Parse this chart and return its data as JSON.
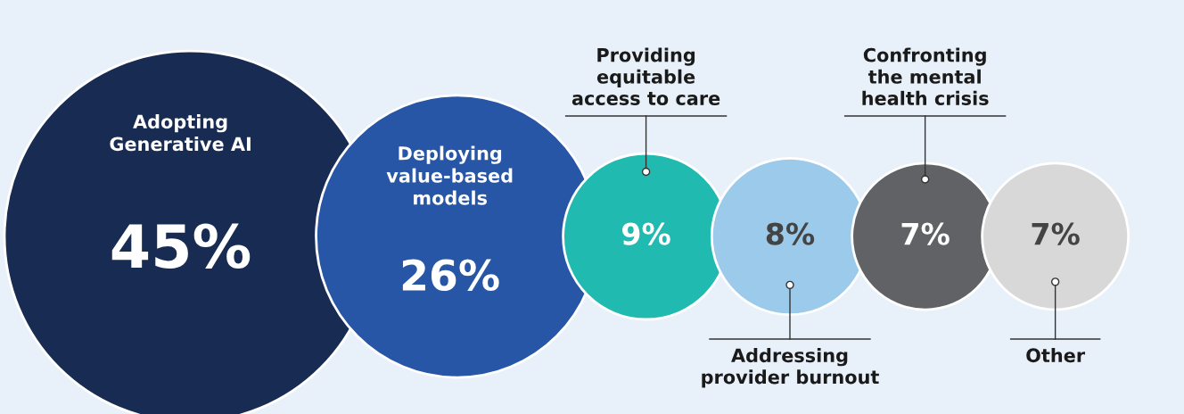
{
  "chart_data": {
    "type": "other",
    "categories": [
      "Adopting\nGenerative AI",
      "Deploying\nvalue-based\nmodels",
      "Providing\nequitable\naccess to care",
      "Addressing\nprovider burnout",
      "Confronting\nthe mental\nhealth crisis",
      "Other"
    ],
    "values": [
      45,
      26,
      9,
      8,
      7,
      7
    ],
    "value_labels": [
      "45%",
      "26%",
      "9%",
      "8%",
      "7%",
      "7%"
    ],
    "colors": [
      "#182b52",
      "#2756a6",
      "#20bab0",
      "#9ccaea",
      "#616265",
      "#d8d8d8"
    ]
  }
}
